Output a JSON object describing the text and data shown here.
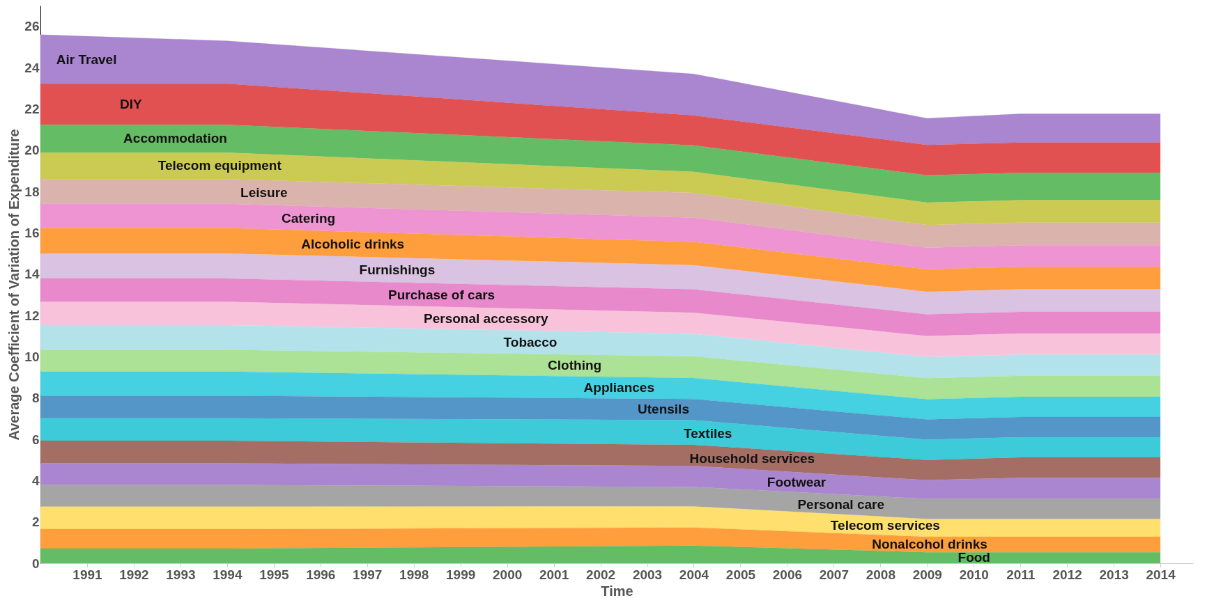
{
  "chart_data": {
    "type": "area",
    "stacked": true,
    "xlabel": "Time",
    "ylabel": "Average Coefficient of Variation of Expenditure",
    "x": [
      1990,
      1994,
      2004,
      2009,
      2011,
      2014
    ],
    "xlim": [
      1990,
      2014.7
    ],
    "xticks": [
      1991,
      1992,
      1993,
      1994,
      1995,
      1996,
      1997,
      1998,
      1999,
      2000,
      2001,
      2002,
      2003,
      2004,
      2005,
      2006,
      2007,
      2008,
      2009,
      2010,
      2011,
      2012,
      2013,
      2014
    ],
    "ylim": [
      0,
      27
    ],
    "yticks": [
      0,
      2,
      4,
      6,
      8,
      10,
      12,
      14,
      16,
      18,
      20,
      22,
      24,
      26
    ],
    "grid": false,
    "legend": false,
    "series": [
      {
        "name": "Food",
        "color": "#5cb85c",
        "values": [
          0.71,
          0.71,
          0.85,
          0.53,
          0.53,
          0.53
        ]
      },
      {
        "name": "Nonalcohol drinks",
        "color": "#ff9933",
        "values": [
          0.94,
          0.94,
          0.88,
          0.75,
          0.75,
          0.75
        ]
      },
      {
        "name": "Telecom services",
        "color": "#ffdd66",
        "values": [
          1.09,
          1.09,
          1.02,
          0.86,
          0.86,
          0.86
        ]
      },
      {
        "name": "Personal care",
        "color": "#a0a0a0",
        "values": [
          1.05,
          1.05,
          0.94,
          0.98,
          0.98,
          0.98
        ]
      },
      {
        "name": "Footwear",
        "color": "#a57fcf",
        "values": [
          1.05,
          1.05,
          1.02,
          0.9,
          1.02,
          1.02
        ]
      },
      {
        "name": "Household services",
        "color": "#a0665c",
        "values": [
          1.09,
          1.09,
          1.02,
          0.98,
          0.98,
          0.98
        ]
      },
      {
        "name": "Textiles",
        "color": "#33c8d8",
        "values": [
          1.09,
          1.09,
          1.2,
          0.98,
          0.98,
          0.98
        ]
      },
      {
        "name": "Utensils",
        "color": "#4a90c4",
        "values": [
          1.09,
          1.09,
          1.02,
          0.98,
          0.98,
          0.98
        ]
      },
      {
        "name": "Appliances",
        "color": "#3ccfe0",
        "values": [
          1.17,
          1.17,
          1.02,
          0.98,
          0.98,
          0.98
        ]
      },
      {
        "name": "Clothing",
        "color": "#a8e090",
        "values": [
          1.05,
          1.05,
          1.05,
          1.02,
          1.02,
          1.02
        ]
      },
      {
        "name": "Tobacco",
        "color": "#b0e0ea",
        "values": [
          1.2,
          1.2,
          1.09,
          1.02,
          1.02,
          1.02
        ]
      },
      {
        "name": "Personal accessory",
        "color": "#f8c0d8",
        "values": [
          1.13,
          1.13,
          1.02,
          1.02,
          1.02,
          1.02
        ]
      },
      {
        "name": "Purchase of cars",
        "color": "#e683c8",
        "values": [
          1.13,
          1.13,
          1.13,
          1.05,
          1.05,
          1.05
        ]
      },
      {
        "name": "Furnishings",
        "color": "#d8c0e0",
        "values": [
          1.2,
          1.2,
          1.17,
          1.09,
          1.09,
          1.09
        ]
      },
      {
        "name": "Alcoholic drinks",
        "color": "#ff9933",
        "values": [
          1.24,
          1.24,
          1.13,
          1.09,
          1.09,
          1.09
        ]
      },
      {
        "name": "Catering",
        "color": "#ee8ed0",
        "values": [
          1.17,
          1.17,
          1.17,
          1.05,
          1.05,
          1.05
        ]
      },
      {
        "name": "Leisure",
        "color": "#d8b0a8",
        "values": [
          1.2,
          1.2,
          1.2,
          1.09,
          1.09,
          1.09
        ]
      },
      {
        "name": "Telecom equipment",
        "color": "#c8c84a",
        "values": [
          1.28,
          1.28,
          1.02,
          1.09,
          1.09,
          1.09
        ]
      },
      {
        "name": "Accommodation",
        "color": "#5cb85c",
        "values": [
          1.35,
          1.35,
          1.28,
          1.32,
          1.32,
          1.32
        ]
      },
      {
        "name": "DIY",
        "color": "#e04848",
        "values": [
          1.99,
          1.99,
          1.45,
          1.47,
          1.47,
          1.47
        ]
      },
      {
        "name": "Air Travel",
        "color": "#a57fcf",
        "values": [
          2.37,
          2.07,
          2.01,
          1.29,
          1.39,
          1.39
        ]
      }
    ]
  }
}
